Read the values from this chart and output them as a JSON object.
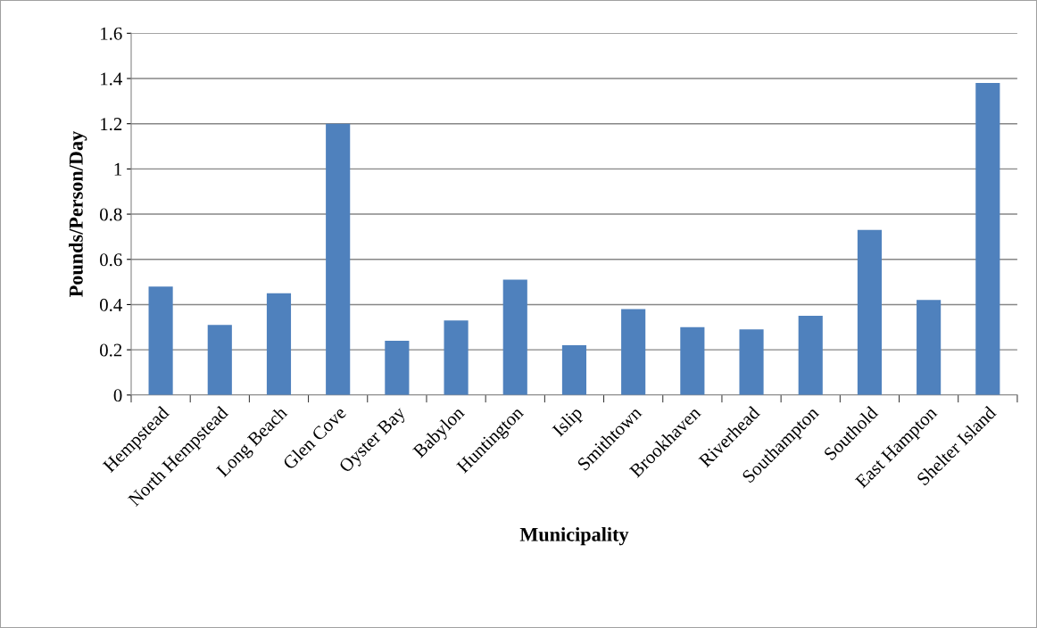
{
  "chart_data": {
    "type": "bar",
    "xlabel": "Municipality",
    "ylabel": "Pounds/Person/Day",
    "categories": [
      "Hempstead",
      "North Hempstead",
      "Long Beach",
      "Glen Cove",
      "Oyster Bay",
      "Babylon",
      "Huntington",
      "Islip",
      "Smithtown",
      "Brookhaven",
      "Riverhead",
      "Southampton",
      "Southold",
      "East Hampton",
      "Shelter Island"
    ],
    "values": [
      0.48,
      0.31,
      0.45,
      1.2,
      0.24,
      0.33,
      0.51,
      0.22,
      0.38,
      0.3,
      0.29,
      0.35,
      0.73,
      0.42,
      1.38
    ],
    "color": "#4f81bd",
    "ylim": [
      0,
      1.6
    ],
    "yticks": [
      0,
      0.2,
      0.4,
      0.6,
      0.8,
      1,
      1.2,
      1.4,
      1.6
    ],
    "grid": "y",
    "legend": false
  }
}
